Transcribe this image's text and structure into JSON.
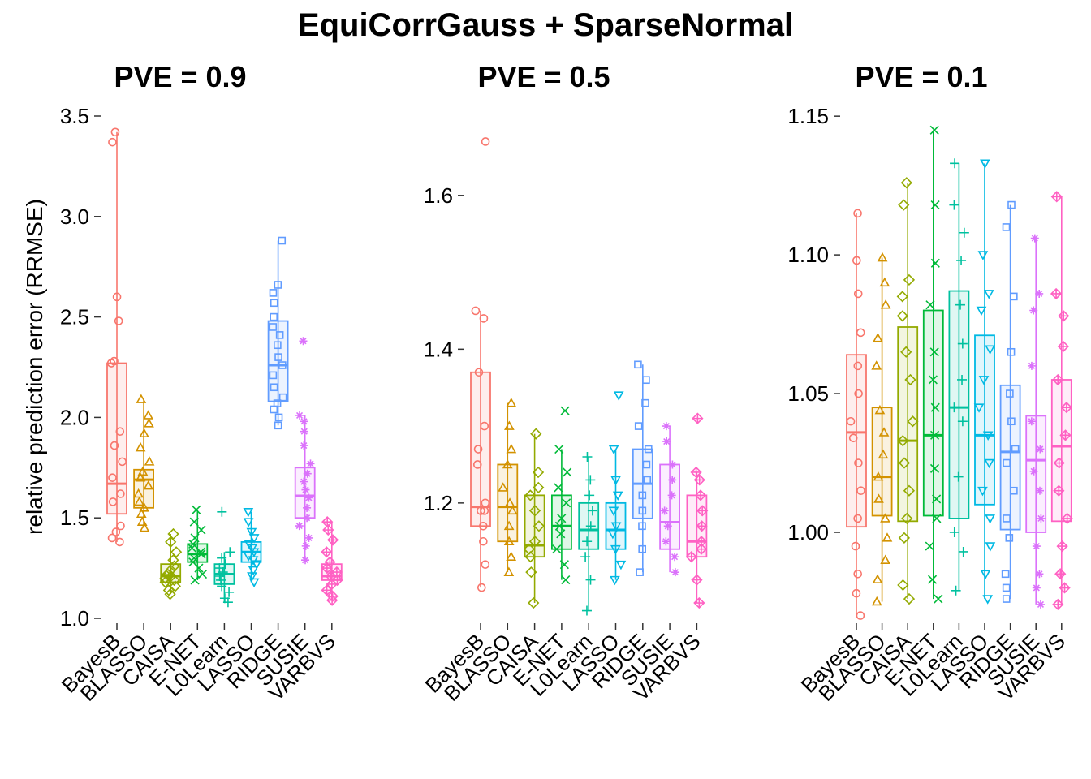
{
  "title": "EquiCorrGauss + SparseNormal",
  "ylabel": "relative prediction error (RRMSE)",
  "methods": [
    "BayesB",
    "BLASSO",
    "CAISA",
    "E-NET",
    "L0Learn",
    "LASSO",
    "RIDGE",
    "SUSIE",
    "VARBVS"
  ],
  "colors": [
    "#F8766D",
    "#D39200",
    "#93AA00",
    "#00BA38",
    "#00C19F",
    "#00B9E3",
    "#619CFF",
    "#DB72FB",
    "#FF61C3"
  ],
  "shapes": [
    "circle",
    "triangle",
    "diamond",
    "cross-x",
    "plus",
    "triangle-down",
    "square",
    "asterisk",
    "diamond-plus"
  ],
  "chart_data": [
    {
      "type": "box",
      "title": "PVE = 0.9",
      "yticks": [
        1.0,
        1.5,
        2.0,
        2.5,
        3.0,
        3.5
      ],
      "ytick_labels": [
        "1.0",
        "1.5",
        "2.0",
        "2.5",
        "3.0",
        "3.5"
      ],
      "ylim": [
        1.0,
        3.5
      ],
      "series": [
        {
          "name": "BayesB",
          "q1": 1.52,
          "median": 1.67,
          "q3": 2.27,
          "whisker_low": 1.38,
          "whisker_high": 3.42,
          "points": [
            1.38,
            1.4,
            1.43,
            1.46,
            1.58,
            1.62,
            1.7,
            1.78,
            1.86,
            1.93,
            2.27,
            2.28,
            2.48,
            2.6,
            3.37,
            3.42
          ]
        },
        {
          "name": "BLASSO",
          "q1": 1.55,
          "median": 1.69,
          "q3": 1.74,
          "whisker_low": 1.45,
          "whisker_high": 2.09,
          "points": [
            1.45,
            1.48,
            1.52,
            1.55,
            1.58,
            1.62,
            1.66,
            1.7,
            1.73,
            1.78,
            1.85,
            1.92,
            1.97,
            2.01,
            2.09
          ]
        },
        {
          "name": "CAISA",
          "q1": 1.18,
          "median": 1.21,
          "q3": 1.27,
          "whisker_low": 1.12,
          "whisker_high": 1.42,
          "points": [
            1.12,
            1.14,
            1.16,
            1.18,
            1.19,
            1.2,
            1.21,
            1.22,
            1.24,
            1.26,
            1.29,
            1.33,
            1.38,
            1.42
          ]
        },
        {
          "name": "E-NET",
          "q1": 1.28,
          "median": 1.32,
          "q3": 1.37,
          "whisker_low": 1.19,
          "whisker_high": 1.54,
          "points": [
            1.19,
            1.22,
            1.25,
            1.28,
            1.3,
            1.32,
            1.33,
            1.35,
            1.37,
            1.4,
            1.44,
            1.48,
            1.54
          ]
        },
        {
          "name": "L0Learn",
          "q1": 1.17,
          "median": 1.22,
          "q3": 1.27,
          "whisker_low": 1.08,
          "whisker_high": 1.33,
          "points": [
            1.08,
            1.1,
            1.13,
            1.16,
            1.19,
            1.21,
            1.23,
            1.25,
            1.27,
            1.3,
            1.33,
            1.53
          ]
        },
        {
          "name": "LASSO",
          "q1": 1.28,
          "median": 1.33,
          "q3": 1.38,
          "whisker_low": 1.18,
          "whisker_high": 1.53,
          "points": [
            1.18,
            1.21,
            1.24,
            1.27,
            1.29,
            1.31,
            1.33,
            1.35,
            1.37,
            1.4,
            1.43,
            1.48,
            1.53
          ]
        },
        {
          "name": "RIDGE",
          "q1": 2.08,
          "median": 2.26,
          "q3": 2.48,
          "whisker_low": 1.96,
          "whisker_high": 2.88,
          "points": [
            1.96,
            2.0,
            2.04,
            2.07,
            2.1,
            2.15,
            2.21,
            2.26,
            2.3,
            2.36,
            2.41,
            2.45,
            2.5,
            2.57,
            2.62,
            2.66,
            2.88
          ]
        },
        {
          "name": "SUSIE",
          "q1": 1.5,
          "median": 1.61,
          "q3": 1.75,
          "whisker_low": 1.29,
          "whisker_high": 2.01,
          "points": [
            1.29,
            1.36,
            1.4,
            1.46,
            1.5,
            1.55,
            1.6,
            1.64,
            1.68,
            1.72,
            1.77,
            1.86,
            1.93,
            1.98,
            2.01,
            2.38
          ]
        },
        {
          "name": "VARBVS",
          "q1": 1.19,
          "median": 1.21,
          "q3": 1.27,
          "whisker_low": 1.09,
          "whisker_high": 1.48,
          "points": [
            1.09,
            1.11,
            1.14,
            1.17,
            1.19,
            1.21,
            1.23,
            1.25,
            1.28,
            1.33,
            1.39,
            1.44,
            1.48
          ]
        }
      ]
    },
    {
      "type": "box",
      "title": "PVE = 0.5",
      "yticks": [
        1.2,
        1.4,
        1.6
      ],
      "ytick_labels": [
        "1.2",
        "1.4",
        "1.6"
      ],
      "ylim": [
        1.05,
        1.68
      ],
      "series": [
        {
          "name": "BayesB",
          "q1": 1.17,
          "median": 1.195,
          "q3": 1.37,
          "whisker_low": 1.09,
          "whisker_high": 1.45,
          "points": [
            1.09,
            1.12,
            1.15,
            1.17,
            1.19,
            1.19,
            1.2,
            1.25,
            1.27,
            1.3,
            1.37,
            1.44,
            1.45,
            1.67
          ]
        },
        {
          "name": "BLASSO",
          "q1": 1.15,
          "median": 1.195,
          "q3": 1.25,
          "whisker_low": 1.11,
          "whisker_high": 1.33,
          "points": [
            1.11,
            1.13,
            1.15,
            1.17,
            1.19,
            1.2,
            1.22,
            1.25,
            1.27,
            1.3,
            1.33
          ]
        },
        {
          "name": "CAISA",
          "q1": 1.13,
          "median": 1.145,
          "q3": 1.21,
          "whisker_low": 1.07,
          "whisker_high": 1.29,
          "points": [
            1.07,
            1.11,
            1.13,
            1.14,
            1.15,
            1.17,
            1.19,
            1.21,
            1.22,
            1.24,
            1.29
          ]
        },
        {
          "name": "E-NET",
          "q1": 1.14,
          "median": 1.17,
          "q3": 1.21,
          "whisker_low": 1.1,
          "whisker_high": 1.27,
          "points": [
            1.1,
            1.12,
            1.14,
            1.16,
            1.17,
            1.18,
            1.2,
            1.22,
            1.24,
            1.27,
            1.32
          ]
        },
        {
          "name": "L0Learn",
          "q1": 1.14,
          "median": 1.165,
          "q3": 1.2,
          "whisker_low": 1.06,
          "whisker_high": 1.26,
          "points": [
            1.06,
            1.1,
            1.13,
            1.15,
            1.17,
            1.19,
            1.21,
            1.23,
            1.26
          ]
        },
        {
          "name": "LASSO",
          "q1": 1.14,
          "median": 1.165,
          "q3": 1.2,
          "whisker_low": 1.1,
          "whisker_high": 1.27,
          "points": [
            1.1,
            1.12,
            1.14,
            1.16,
            1.17,
            1.19,
            1.21,
            1.23,
            1.27,
            1.34
          ]
        },
        {
          "name": "RIDGE",
          "q1": 1.18,
          "median": 1.225,
          "q3": 1.27,
          "whisker_low": 1.11,
          "whisker_high": 1.38,
          "points": [
            1.11,
            1.14,
            1.17,
            1.19,
            1.21,
            1.23,
            1.25,
            1.27,
            1.3,
            1.33,
            1.36,
            1.38
          ]
        },
        {
          "name": "SUSIE",
          "q1": 1.14,
          "median": 1.175,
          "q3": 1.25,
          "whisker_low": 1.11,
          "whisker_high": 1.3,
          "points": [
            1.11,
            1.13,
            1.15,
            1.17,
            1.19,
            1.21,
            1.23,
            1.25,
            1.28,
            1.3
          ]
        },
        {
          "name": "VARBVS",
          "q1": 1.13,
          "median": 1.15,
          "q3": 1.21,
          "whisker_low": 1.07,
          "whisker_high": 1.24,
          "points": [
            1.07,
            1.1,
            1.13,
            1.14,
            1.15,
            1.17,
            1.19,
            1.21,
            1.23,
            1.24,
            1.31
          ]
        }
      ]
    },
    {
      "type": "box",
      "title": "PVE = 0.1",
      "yticks": [
        1.0,
        1.05,
        1.1,
        1.15
      ],
      "ytick_labels": [
        "1.00",
        "1.05",
        "1.10",
        "1.15"
      ],
      "ylim": [
        0.969,
        1.148
      ],
      "series": [
        {
          "name": "BayesB",
          "q1": 1.002,
          "median": 1.036,
          "q3": 1.064,
          "whisker_low": 0.97,
          "whisker_high": 1.115,
          "points": [
            0.97,
            0.978,
            0.985,
            0.995,
            1.005,
            1.015,
            1.025,
            1.034,
            1.04,
            1.05,
            1.06,
            1.072,
            1.086,
            1.098,
            1.115
          ]
        },
        {
          "name": "BLASSO",
          "q1": 1.006,
          "median": 1.02,
          "q3": 1.045,
          "whisker_low": 0.975,
          "whisker_high": 1.099,
          "points": [
            0.975,
            0.983,
            0.99,
            0.998,
            1.005,
            1.012,
            1.02,
            1.028,
            1.036,
            1.044,
            1.06,
            1.07,
            1.082,
            1.09,
            1.099
          ]
        },
        {
          "name": "CAISA",
          "q1": 1.004,
          "median": 1.033,
          "q3": 1.074,
          "whisker_low": 0.976,
          "whisker_high": 1.126,
          "points": [
            0.976,
            0.981,
            0.998,
            1.005,
            1.015,
            1.025,
            1.033,
            1.04,
            1.055,
            1.065,
            1.078,
            1.085,
            1.091,
            1.118,
            1.126
          ]
        },
        {
          "name": "E-NET",
          "q1": 1.006,
          "median": 1.035,
          "q3": 1.08,
          "whisker_low": 0.976,
          "whisker_high": 1.145,
          "points": [
            0.976,
            0.983,
            0.995,
            1.005,
            1.012,
            1.023,
            1.035,
            1.045,
            1.055,
            1.065,
            1.082,
            1.097,
            1.118,
            1.145
          ]
        },
        {
          "name": "L0Learn",
          "q1": 1.005,
          "median": 1.045,
          "q3": 1.087,
          "whisker_low": 0.979,
          "whisker_high": 1.133,
          "points": [
            0.979,
            0.993,
            1.0,
            1.02,
            1.04,
            1.045,
            1.055,
            1.068,
            1.082,
            1.098,
            1.108,
            1.118,
            1.133
          ]
        },
        {
          "name": "LASSO",
          "q1": 1.01,
          "median": 1.035,
          "q3": 1.071,
          "whisker_low": 0.976,
          "whisker_high": 1.133,
          "points": [
            0.976,
            0.985,
            0.995,
            1.005,
            1.015,
            1.025,
            1.035,
            1.045,
            1.055,
            1.066,
            1.08,
            1.086,
            1.1,
            1.133
          ]
        },
        {
          "name": "RIDGE",
          "q1": 1.001,
          "median": 1.029,
          "q3": 1.053,
          "whisker_low": 0.976,
          "whisker_high": 1.118,
          "points": [
            0.976,
            0.98,
            0.985,
            0.998,
            1.005,
            1.015,
            1.025,
            1.03,
            1.04,
            1.05,
            1.065,
            1.085,
            1.11,
            1.118
          ]
        },
        {
          "name": "SUSIE",
          "q1": 1.0,
          "median": 1.026,
          "q3": 1.042,
          "whisker_low": 0.974,
          "whisker_high": 1.106,
          "points": [
            0.974,
            0.98,
            0.985,
            0.995,
            1.005,
            1.015,
            1.022,
            1.03,
            1.04,
            1.06,
            1.08,
            1.086,
            1.106
          ]
        },
        {
          "name": "VARBVS",
          "q1": 1.004,
          "median": 1.031,
          "q3": 1.055,
          "whisker_low": 0.974,
          "whisker_high": 1.121,
          "points": [
            0.974,
            0.98,
            0.985,
            0.995,
            1.005,
            1.015,
            1.025,
            1.035,
            1.045,
            1.055,
            1.067,
            1.078,
            1.086,
            1.121
          ]
        }
      ]
    }
  ]
}
